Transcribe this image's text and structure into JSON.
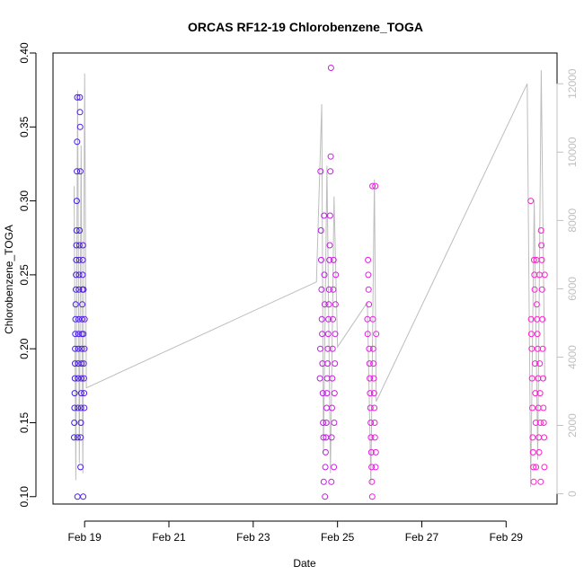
{
  "chart_data": {
    "type": "scatter",
    "title": "ORCAS RF12-19 Chlorobenzene_TOGA",
    "xlabel": "Date",
    "ylabel": "Chlorobenzene_TOGA",
    "x_ticks": [
      "Feb 19",
      "Feb 21",
      "Feb 23",
      "Feb 25",
      "Feb 27",
      "Feb 29"
    ],
    "y_ticks": [
      "0.10",
      "0.15",
      "0.20",
      "0.25",
      "0.30",
      "0.35",
      "0.40"
    ],
    "y2_ticks": [
      "0",
      "2000",
      "4000",
      "6000",
      "8000",
      "10000",
      "12000"
    ],
    "xlim": [
      "2016-02-18 06:00",
      "2016-03-01 05:00"
    ],
    "ylim": [
      0.095,
      0.4
    ],
    "y2lim": [
      -300,
      12900
    ],
    "grid": false,
    "colors": {
      "early": "#3b1ee0",
      "late": "#ff1fd0",
      "altitude_line": "#bdbdbd",
      "secondary_axis": "#c0c0c0"
    },
    "point_groups": [
      {
        "time_start": "2016-02-18 18:00",
        "time_end": "2016-02-19 00:00",
        "color_start": "#3b1ee0",
        "color_end": "#5a1ee6",
        "y": [
          0.14,
          0.15,
          0.16,
          0.17,
          0.18,
          0.19,
          0.2,
          0.21,
          0.22,
          0.23,
          0.24,
          0.25,
          0.26,
          0.27,
          0.28,
          0.3,
          0.32,
          0.34,
          0.37,
          0.1,
          0.14,
          0.16,
          0.18,
          0.19,
          0.2,
          0.21,
          0.22,
          0.24,
          0.25,
          0.26,
          0.27,
          0.28,
          0.37,
          0.36,
          0.35,
          0.32,
          0.12,
          0.14,
          0.15,
          0.16,
          0.17,
          0.18,
          0.19,
          0.2,
          0.21,
          0.22,
          0.23,
          0.24,
          0.25,
          0.26,
          0.27,
          0.1,
          0.21,
          0.24,
          0.19,
          0.18,
          0.17,
          0.16,
          0.2,
          0.22
        ]
      },
      {
        "time_start": "2016-02-24 14:00",
        "time_end": "2016-02-24 23:00",
        "color_start": "#b51ee0",
        "color_end": "#d01ee0",
        "y": [
          0.18,
          0.2,
          0.32,
          0.28,
          0.26,
          0.24,
          0.22,
          0.21,
          0.19,
          0.17,
          0.15,
          0.14,
          0.11,
          0.29,
          0.25,
          0.23,
          0.1,
          0.12,
          0.13,
          0.14,
          0.15,
          0.16,
          0.17,
          0.18,
          0.19,
          0.2,
          0.21,
          0.22,
          0.23,
          0.24,
          0.26,
          0.27,
          0.29,
          0.32,
          0.33,
          0.39,
          0.11,
          0.14,
          0.16,
          0.18,
          0.2,
          0.22,
          0.24,
          0.26,
          0.12,
          0.15,
          0.17,
          0.19,
          0.21,
          0.23,
          0.25
        ]
      },
      {
        "time_start": "2016-02-25 17:00",
        "time_end": "2016-02-25 22:00",
        "color_start": "#e01ee0",
        "color_end": "#ee1ee0",
        "y": [
          0.22,
          0.21,
          0.26,
          0.25,
          0.24,
          0.23,
          0.2,
          0.19,
          0.18,
          0.17,
          0.16,
          0.15,
          0.14,
          0.13,
          0.12,
          0.11,
          0.1,
          0.31,
          0.22,
          0.2,
          0.19,
          0.18,
          0.17,
          0.16,
          0.15,
          0.14,
          0.31,
          0.12,
          0.13,
          0.21
        ]
      },
      {
        "time_start": "2016-02-29 14:00",
        "time_end": "2016-02-29 22:00",
        "color_start": "#ff1fd0",
        "color_end": "#ff1fd0",
        "y": [
          0.3,
          0.22,
          0.21,
          0.2,
          0.18,
          0.16,
          0.14,
          0.13,
          0.12,
          0.11,
          0.26,
          0.25,
          0.24,
          0.19,
          0.17,
          0.15,
          0.12,
          0.26,
          0.23,
          0.22,
          0.21,
          0.2,
          0.18,
          0.16,
          0.14,
          0.13,
          0.25,
          0.19,
          0.17,
          0.15,
          0.11,
          0.28,
          0.27,
          0.26,
          0.24,
          0.22,
          0.2,
          0.18,
          0.16,
          0.15,
          0.14,
          0.12,
          0.25
        ]
      }
    ],
    "altitude_line": [
      [
        "2016-02-18 18:00",
        9000
      ],
      [
        "2016-02-18 19:00",
        400
      ],
      [
        "2016-02-18 20:00",
        11800
      ],
      [
        "2016-02-18 21:00",
        900
      ],
      [
        "2016-02-18 22:00",
        10200
      ],
      [
        "2016-02-18 23:00",
        600
      ],
      [
        "2016-02-19 00:00",
        12300
      ],
      [
        "2016-02-19 01:00",
        3100
      ],
      [
        "2016-02-24 12:00",
        6200
      ],
      [
        "2016-02-24 15:00",
        11400
      ],
      [
        "2016-02-24 16:00",
        1200
      ],
      [
        "2016-02-24 18:00",
        9600
      ],
      [
        "2016-02-24 20:00",
        600
      ],
      [
        "2016-02-24 22:00",
        8700
      ],
      [
        "2016-02-25 00:00",
        4300
      ],
      [
        "2016-02-25 17:00",
        5600
      ],
      [
        "2016-02-25 19:00",
        300
      ],
      [
        "2016-02-25 21:00",
        9200
      ],
      [
        "2016-02-25 22:00",
        2700
      ],
      [
        "2016-02-29 12:00",
        12000
      ],
      [
        "2016-02-29 14:00",
        200
      ],
      [
        "2016-02-29 16:00",
        8600
      ],
      [
        "2016-02-29 18:00",
        1000
      ],
      [
        "2016-02-29 20:00",
        12400
      ],
      [
        "2016-02-29 22:00",
        3300
      ]
    ]
  }
}
